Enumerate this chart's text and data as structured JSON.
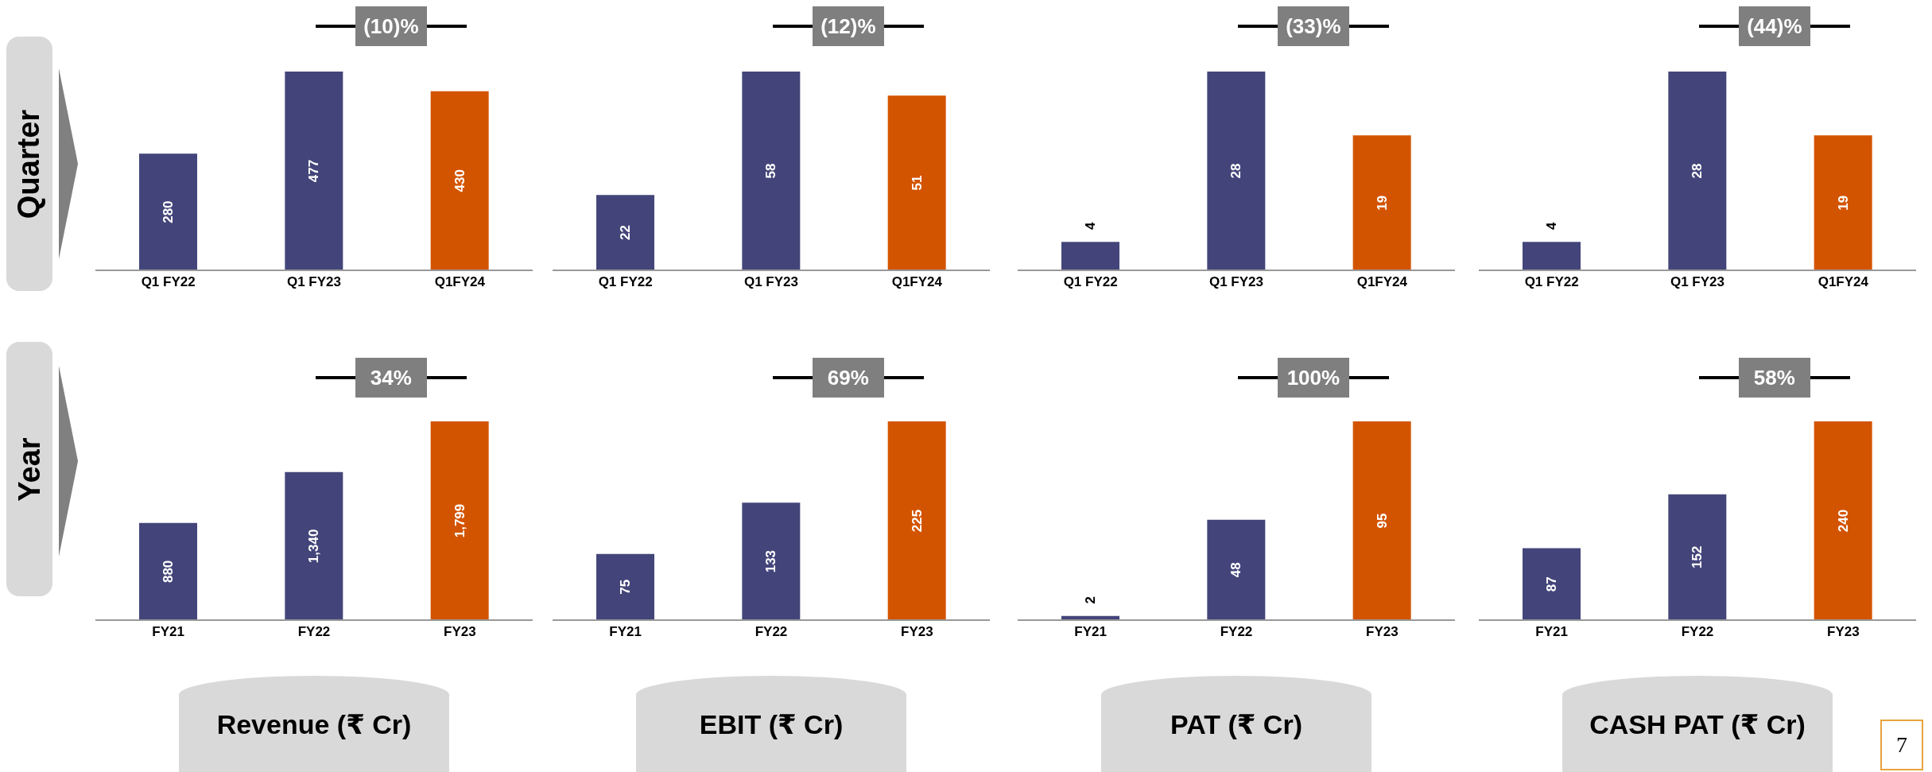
{
  "chart_data": [
    {
      "type": "bar",
      "ylabel": "Quarter",
      "categories": [
        "Q1 FY22",
        "Q1 FY23",
        "Q1FY24"
      ],
      "values": [
        280,
        477,
        430
      ],
      "colors": [
        "#43457a",
        "#43457a",
        "#d35400"
      ],
      "data_labels": true,
      "annotations": [
        "(10)%"
      ]
    },
    {
      "type": "bar",
      "categories": [
        "Q1 FY22",
        "Q1 FY23",
        "Q1FY24"
      ],
      "values": [
        22,
        58,
        51
      ],
      "colors": [
        "#43457a",
        "#43457a",
        "#d35400"
      ],
      "data_labels": true,
      "annotations": [
        "(12)%"
      ]
    },
    {
      "type": "bar",
      "categories": [
        "Q1 FY22",
        "Q1 FY23",
        "Q1FY24"
      ],
      "values": [
        4,
        28,
        19
      ],
      "colors": [
        "#43457a",
        "#43457a",
        "#d35400"
      ],
      "data_labels": true,
      "annotations": [
        "(33)%"
      ]
    },
    {
      "type": "bar",
      "categories": [
        "Q1 FY22",
        "Q1 FY23",
        "Q1FY24"
      ],
      "values": [
        4,
        28,
        19
      ],
      "colors": [
        "#43457a",
        "#43457a",
        "#d35400"
      ],
      "data_labels": true,
      "annotations": [
        "(44)%"
      ]
    },
    {
      "type": "bar",
      "ylabel": "Year",
      "xlabel": "Revenue (₹ Cr)",
      "categories": [
        "FY21",
        "FY22",
        "FY23"
      ],
      "values": [
        880,
        1340,
        1799
      ],
      "colors": [
        "#43457a",
        "#43457a",
        "#d35400"
      ],
      "data_labels": true,
      "value_labels": [
        "880",
        "1,340",
        "1,799"
      ],
      "annotations": [
        "34%"
      ]
    },
    {
      "type": "bar",
      "xlabel": "EBIT (₹ Cr)",
      "categories": [
        "FY21",
        "FY22",
        "FY23"
      ],
      "values": [
        75,
        133,
        225
      ],
      "colors": [
        "#43457a",
        "#43457a",
        "#d35400"
      ],
      "data_labels": true,
      "annotations": [
        "69%"
      ]
    },
    {
      "type": "bar",
      "xlabel": "PAT (₹ Cr)",
      "categories": [
        "FY21",
        "FY22",
        "FY23"
      ],
      "values": [
        2,
        48,
        95
      ],
      "colors": [
        "#43457a",
        "#43457a",
        "#d35400"
      ],
      "data_labels": true,
      "annotations": [
        "100%"
      ]
    },
    {
      "type": "bar",
      "xlabel": "CASH PAT (₹ Cr)",
      "categories": [
        "FY21",
        "FY22",
        "FY23"
      ],
      "values": [
        87,
        152,
        240
      ],
      "colors": [
        "#43457a",
        "#43457a",
        "#d35400"
      ],
      "data_labels": true,
      "annotations": [
        "58%",
        "7"
      ]
    }
  ]
}
